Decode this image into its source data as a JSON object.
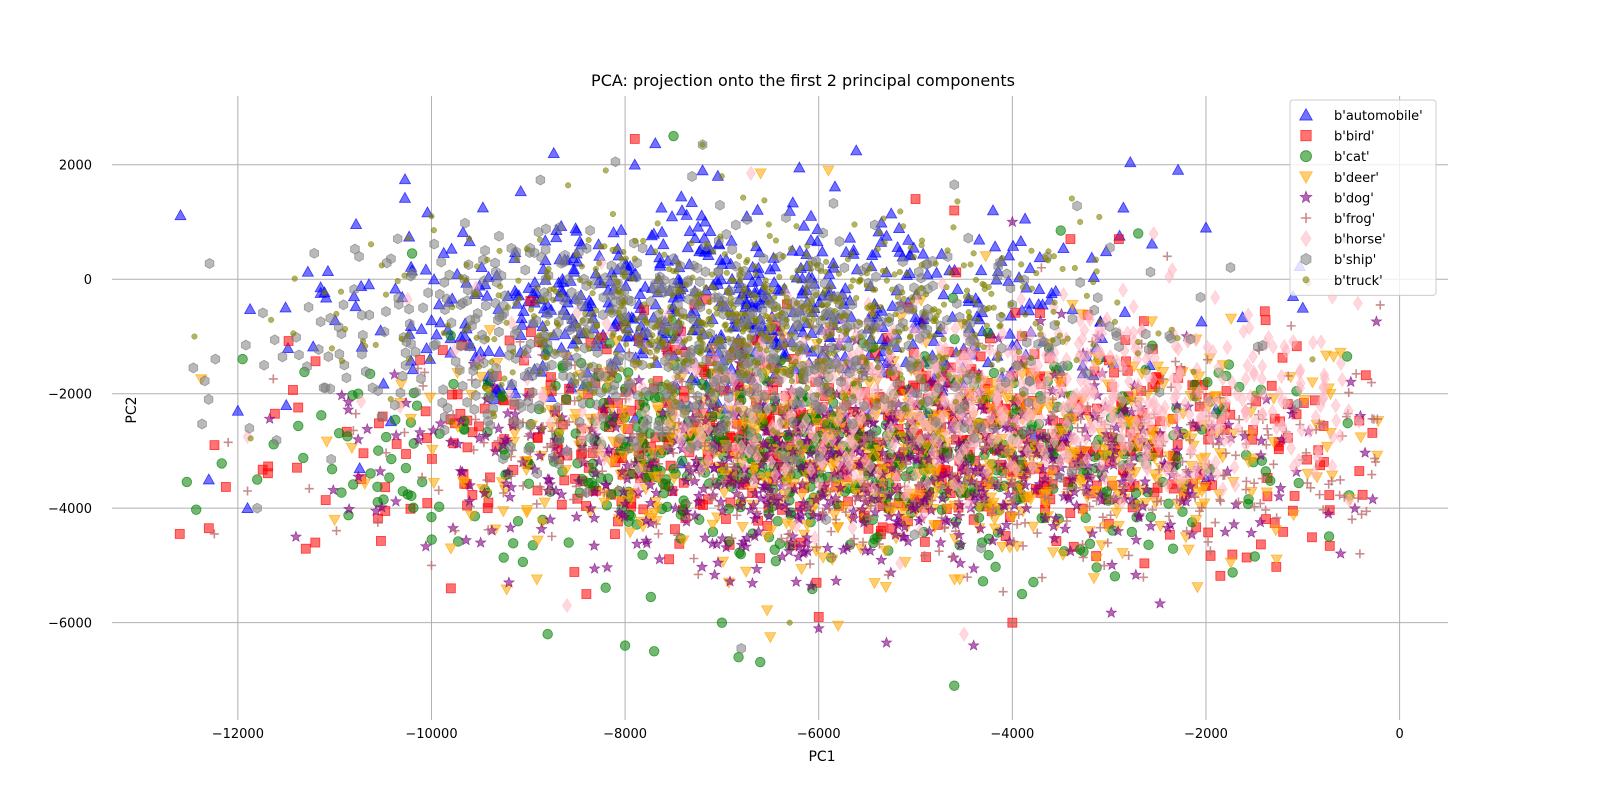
{
  "chart_data": {
    "type": "scatter",
    "title": "PCA: projection onto the first 2 principal components",
    "xlabel": "PC1",
    "ylabel": "PC2",
    "xlim": [
      -13300,
      500
    ],
    "ylim": [
      -7700,
      3200
    ],
    "xticks": [
      -12000,
      -10000,
      -8000,
      -6000,
      -4000,
      -2000,
      0
    ],
    "xtick_labels": [
      "−12000",
      "−10000",
      "−8000",
      "−6000",
      "−4000",
      "−2000",
      "0"
    ],
    "yticks": [
      2000,
      0,
      -2000,
      -4000,
      -6000
    ],
    "ytick_labels": [
      "2000",
      "0",
      "−2000",
      "−4000",
      "−6000"
    ],
    "grid": true,
    "legend_position": "top-right",
    "series": [
      {
        "name": "b'automobile'",
        "color": "#0000ff",
        "marker": "triangle-up",
        "center": [
          -7000,
          -600
        ],
        "spread": [
          1900,
          900
        ],
        "points": [
          [
            -12300,
            -3500
          ],
          [
            -12000,
            -2300
          ],
          [
            -11500,
            -2200
          ],
          [
            -10800,
            -300
          ],
          [
            -7200,
            1900
          ],
          [
            -6200,
            1950
          ],
          [
            -2000,
            900
          ],
          [
            -2000,
            -3500
          ],
          [
            -1000,
            -500
          ],
          [
            -7900,
            2000
          ],
          [
            -4200,
            1200
          ],
          [
            -11900,
            -4000
          ]
        ]
      },
      {
        "name": "b'bird'",
        "color": "#ff0000",
        "marker": "square",
        "center": [
          -5300,
          -2700
        ],
        "spread": [
          2600,
          1000
        ],
        "points": [
          [
            -12600,
            -4450
          ],
          [
            -12300,
            -4350
          ],
          [
            -11200,
            -4600
          ],
          [
            -9800,
            -5400
          ],
          [
            -7900,
            2450
          ],
          [
            -5000,
            1400
          ],
          [
            -4000,
            -6000
          ],
          [
            -4600,
            1200
          ],
          [
            -3400,
            700
          ],
          [
            -2900,
            700
          ],
          [
            -6000,
            -5900
          ],
          [
            -8400,
            -5500
          ]
        ]
      },
      {
        "name": "b'cat'",
        "color": "#008000",
        "marker": "circle",
        "center": [
          -6000,
          -3000
        ],
        "spread": [
          2200,
          900
        ],
        "points": [
          [
            -7500,
            2500
          ],
          [
            -4600,
            -7100
          ],
          [
            -7700,
            -6500
          ],
          [
            -8000,
            -6400
          ],
          [
            -8800,
            -6200
          ],
          [
            -10200,
            450
          ],
          [
            -11800,
            -3500
          ],
          [
            -2700,
            800
          ],
          [
            -3500,
            850
          ],
          [
            -7000,
            -6000
          ],
          [
            -3900,
            -5500
          ]
        ]
      },
      {
        "name": "b'deer'",
        "color": "#ffa500",
        "marker": "triangle-down",
        "center": [
          -5000,
          -3000
        ],
        "spread": [
          2400,
          900
        ],
        "points": [
          [
            -6600,
            1850
          ],
          [
            -5900,
            1900
          ],
          [
            -6500,
            -6250
          ],
          [
            -5800,
            -6050
          ],
          [
            -900,
            -1800
          ],
          [
            -2100,
            -4200
          ],
          [
            -11000,
            -4200
          ],
          [
            -9800,
            -4700
          ]
        ]
      },
      {
        "name": "b'dog'",
        "color": "#800080",
        "marker": "star",
        "center": [
          -5500,
          -3300
        ],
        "spread": [
          2300,
          900
        ],
        "points": [
          [
            -5300,
            -6350
          ],
          [
            -4400,
            -6400
          ],
          [
            -4000,
            1000
          ],
          [
            -2200,
            -1000
          ],
          [
            -11400,
            -4500
          ],
          [
            -9200,
            -5300
          ],
          [
            -6000,
            -6100
          ]
        ]
      },
      {
        "name": "b'frog'",
        "color": "#bc6e6e",
        "marker": "plus",
        "center": [
          -4500,
          -3000
        ],
        "spread": [
          2800,
          900
        ],
        "points": [
          [
            -12100,
            -2850
          ],
          [
            -11900,
            -3700
          ],
          [
            -200,
            -450
          ],
          [
            -2400,
            400
          ],
          [
            -3700,
            200
          ],
          [
            -4000,
            -6000
          ],
          [
            -10000,
            -5000
          ],
          [
            -2200,
            -4400
          ]
        ]
      },
      {
        "name": "b'horse'",
        "color": "#ffb6c1",
        "marker": "diamond",
        "center": [
          -4300,
          -2100
        ],
        "spread": [
          2200,
          800
        ],
        "points": [
          [
            -11900,
            -2750
          ],
          [
            -2100,
            -3300
          ],
          [
            -2400,
            -3600
          ],
          [
            -8600,
            -5700
          ],
          [
            -4500,
            -6200
          ],
          [
            -6700,
            1850
          ],
          [
            -1900,
            -3200
          ]
        ]
      },
      {
        "name": "b'ship'",
        "color": "#808080",
        "marker": "hexagon",
        "center": [
          -7400,
          -1000
        ],
        "spread": [
          2200,
          1000
        ],
        "points": [
          [
            -8100,
            2050
          ],
          [
            -7200,
            2350
          ],
          [
            -4600,
            1650
          ],
          [
            -10200,
            100
          ],
          [
            -10900,
            -1500
          ],
          [
            -11800,
            -4000
          ],
          [
            -6800,
            -6450
          ],
          [
            -9900,
            300
          ]
        ]
      },
      {
        "name": "b'truck'",
        "color": "#808000",
        "marker": "dot",
        "center": [
          -6800,
          -700
        ],
        "spread": [
          1900,
          800
        ],
        "points": [
          [
            -7200,
            2350
          ],
          [
            -8200,
            1900
          ],
          [
            -3300,
            1000
          ],
          [
            -10000,
            1100
          ],
          [
            -1500,
            -2000
          ],
          [
            -900,
            -1400
          ],
          [
            -6300,
            -6000
          ],
          [
            -9800,
            -2500
          ]
        ]
      }
    ]
  }
}
